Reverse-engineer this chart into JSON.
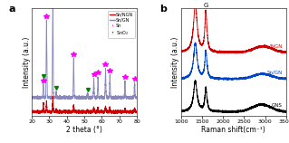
{
  "panel_a": {
    "title": "a",
    "xlabel": "2 theta (°)",
    "ylabel": "Intensity (a.u.)",
    "xlim": [
      20,
      80
    ],
    "ylim": [
      0,
      1.05
    ],
    "sn_ngn_color": "#cc0000",
    "sn_gn_color": "#8888bb",
    "sn_peaks": [
      26.6,
      28.4,
      32.0,
      43.9,
      55.4,
      57.8,
      62.1,
      64.6,
      73.2,
      78.7
    ],
    "sn_peak_amps_gn": [
      0.12,
      0.75,
      0.92,
      0.38,
      0.18,
      0.2,
      0.28,
      0.22,
      0.16,
      0.14
    ],
    "sn_peak_amps_ngn": [
      0.06,
      0.1,
      0.14,
      0.06,
      0.04,
      0.04,
      0.05,
      0.04,
      0.03,
      0.03
    ],
    "sno2_peaks": [
      26.6,
      33.9,
      51.8
    ],
    "sno2_amps_gn": [
      0.05,
      0.05,
      0.04
    ],
    "sno2_amps_ngn": [
      0.02,
      0.02,
      0.015
    ],
    "baseline_gn": 0.18,
    "baseline_ngn": 0.04,
    "peak_sigma": 0.18
  },
  "panel_b": {
    "title": "b",
    "xlabel": "Raman shift(cm⁻¹)",
    "ylabel": "Intensity (a.u.)",
    "xlim": [
      1000,
      3500
    ],
    "ylim": [
      0,
      1.05
    ],
    "sn_ngn_color": "#cc0000",
    "sn_gn_color": "#0044cc",
    "gns_color": "#000000",
    "label_sn_ngn": "Sn/NGN",
    "label_sn_gn": "Sn/GN",
    "label_gns": "GNS",
    "D_peak": 1340,
    "G_peak": 1590,
    "xticks": [
      1000,
      1500,
      2000,
      2500,
      3000,
      3500
    ]
  },
  "bg_color": "#ffffff",
  "border_color": "#333333",
  "figsize": [
    3.19,
    1.58
  ],
  "dpi": 100
}
